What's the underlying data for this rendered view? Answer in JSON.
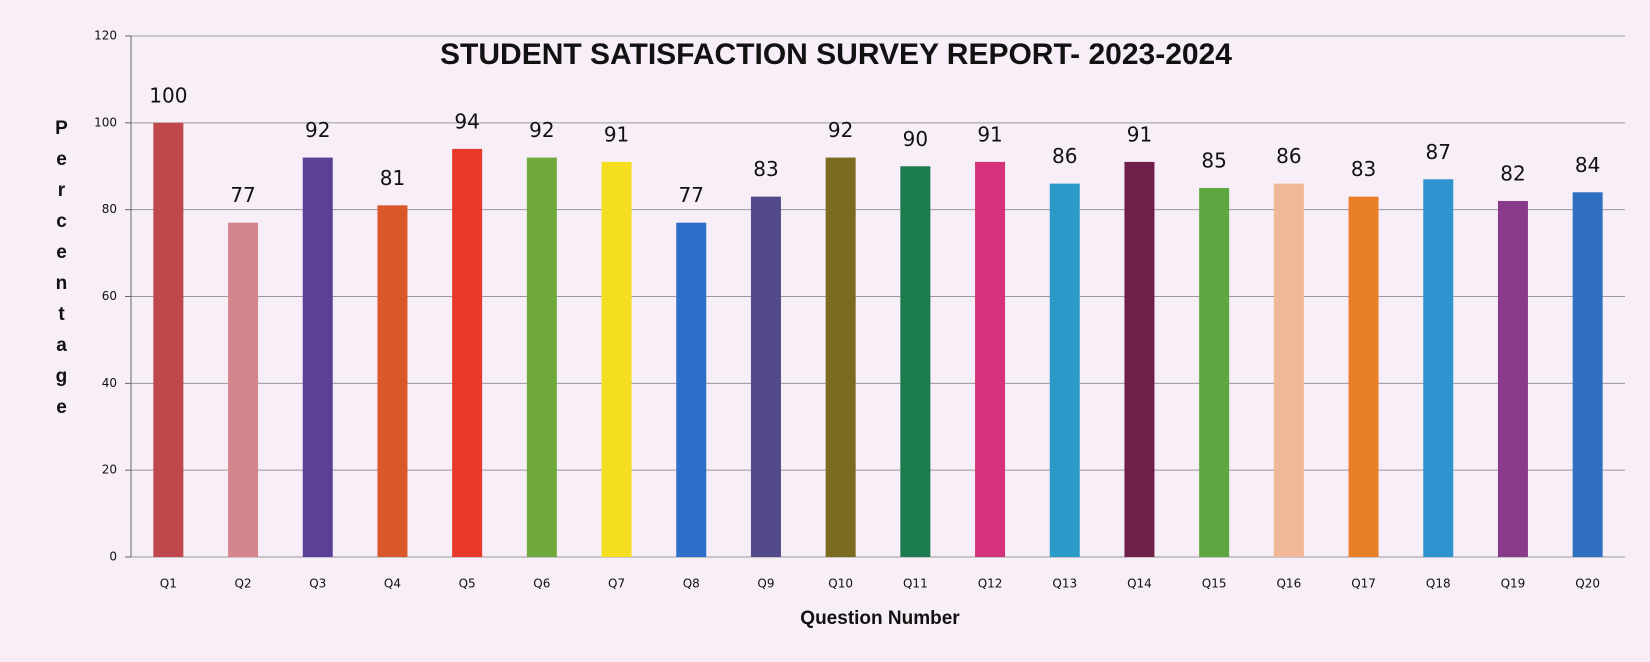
{
  "chart_data": {
    "type": "bar",
    "title": "STUDENT SATISFACTION SURVEY REPORT- 2023-2024",
    "x_label": "Question Number",
    "y_label": "Percentage",
    "categories": [
      "Q1",
      "Q2",
      "Q3",
      "Q4",
      "Q5",
      "Q6",
      "Q7",
      "Q8",
      "Q9",
      "Q10",
      "Q11",
      "Q12",
      "Q13",
      "Q14",
      "Q15",
      "Q16",
      "Q17",
      "Q18",
      "Q19",
      "Q20"
    ],
    "values": [
      100,
      77,
      92,
      81,
      94,
      92,
      91,
      77,
      83,
      92,
      90,
      91,
      86,
      91,
      85,
      86,
      83,
      87,
      82,
      84
    ],
    "colors": [
      "#c0474b",
      "#d5868c",
      "#5c3f96",
      "#d9582a",
      "#e8392a",
      "#6fa93c",
      "#f5de1f",
      "#2b6fc8",
      "#534a8a",
      "#7a6b1f",
      "#1c7a4f",
      "#d4327a",
      "#2a9ac8",
      "#6e1f4a",
      "#5ea63f",
      "#f0b896",
      "#ea7f2a",
      "#2f93cf",
      "#8a3a8a",
      "#2f6fc0"
    ],
    "ylim": [
      0,
      120
    ],
    "yticks": [
      0,
      20,
      40,
      60,
      80,
      100,
      120
    ],
    "grid": true
  }
}
